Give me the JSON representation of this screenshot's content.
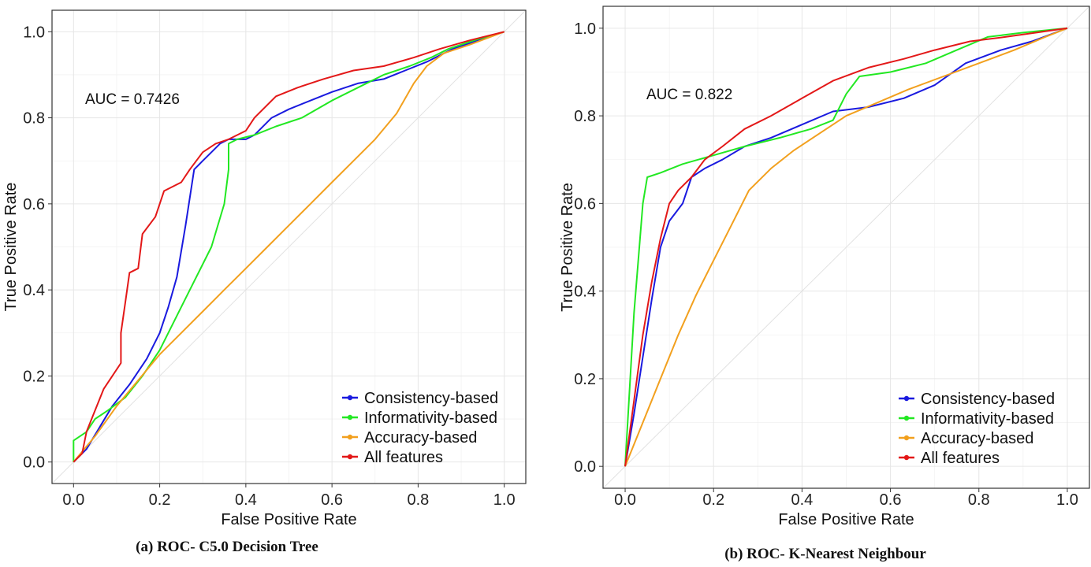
{
  "colors": {
    "Consistency-based": "#1a1adf",
    "Informativity-based": "#22e822",
    "Accuracy-based": "#f2a01e",
    "All features": "#e31818"
  },
  "chart_data": [
    {
      "type": "line",
      "caption": "(a) ROC- C5.0 Decision Tree",
      "xlabel": "False Positive Rate",
      "ylabel": "True Positive Rate",
      "annotation": "AUC = 0.7426",
      "xlim": [
        -0.05,
        1.05
      ],
      "ylim": [
        -0.05,
        1.05
      ],
      "ticks": [
        0.0,
        0.2,
        0.4,
        0.6,
        0.8,
        1.0
      ],
      "tick_labels": [
        "0.0",
        "0.2",
        "0.4",
        "0.6",
        "0.8",
        "1.0"
      ],
      "grid": true,
      "diagonal_reference": true,
      "legend_position": "bottom-right",
      "series": [
        {
          "name": "Consistency-based",
          "points": [
            [
              0,
              0
            ],
            [
              0.01,
              0.01
            ],
            [
              0.03,
              0.03
            ],
            [
              0.06,
              0.08
            ],
            [
              0.09,
              0.13
            ],
            [
              0.13,
              0.18
            ],
            [
              0.17,
              0.24
            ],
            [
              0.2,
              0.3
            ],
            [
              0.22,
              0.36
            ],
            [
              0.24,
              0.43
            ],
            [
              0.26,
              0.55
            ],
            [
              0.28,
              0.68
            ],
            [
              0.3,
              0.7
            ],
            [
              0.32,
              0.72
            ],
            [
              0.34,
              0.74
            ],
            [
              0.36,
              0.75
            ],
            [
              0.4,
              0.75
            ],
            [
              0.42,
              0.76
            ],
            [
              0.46,
              0.8
            ],
            [
              0.5,
              0.82
            ],
            [
              0.55,
              0.84
            ],
            [
              0.6,
              0.86
            ],
            [
              0.66,
              0.88
            ],
            [
              0.72,
              0.89
            ],
            [
              0.77,
              0.91
            ],
            [
              0.82,
              0.93
            ],
            [
              0.88,
              0.96
            ],
            [
              0.94,
              0.98
            ],
            [
              1,
              1
            ]
          ]
        },
        {
          "name": "Informativity-based",
          "points": [
            [
              0,
              0
            ],
            [
              0,
              0.05
            ],
            [
              0.03,
              0.07
            ],
            [
              0.05,
              0.1
            ],
            [
              0.08,
              0.12
            ],
            [
              0.12,
              0.15
            ],
            [
              0.16,
              0.2
            ],
            [
              0.2,
              0.26
            ],
            [
              0.24,
              0.34
            ],
            [
              0.28,
              0.42
            ],
            [
              0.32,
              0.5
            ],
            [
              0.35,
              0.6
            ],
            [
              0.36,
              0.68
            ],
            [
              0.36,
              0.74
            ],
            [
              0.38,
              0.75
            ],
            [
              0.42,
              0.76
            ],
            [
              0.47,
              0.78
            ],
            [
              0.53,
              0.8
            ],
            [
              0.6,
              0.84
            ],
            [
              0.66,
              0.87
            ],
            [
              0.72,
              0.9
            ],
            [
              0.78,
              0.92
            ],
            [
              0.83,
              0.94
            ],
            [
              0.87,
              0.96
            ],
            [
              0.93,
              0.98
            ],
            [
              1,
              1
            ]
          ]
        },
        {
          "name": "Accuracy-based",
          "points": [
            [
              0,
              0
            ],
            [
              0.05,
              0.06
            ],
            [
              0.1,
              0.13
            ],
            [
              0.15,
              0.19
            ],
            [
              0.2,
              0.25
            ],
            [
              0.25,
              0.3
            ],
            [
              0.3,
              0.35
            ],
            [
              0.35,
              0.4
            ],
            [
              0.4,
              0.45
            ],
            [
              0.45,
              0.5
            ],
            [
              0.5,
              0.55
            ],
            [
              0.55,
              0.6
            ],
            [
              0.6,
              0.65
            ],
            [
              0.65,
              0.7
            ],
            [
              0.7,
              0.75
            ],
            [
              0.75,
              0.81
            ],
            [
              0.79,
              0.88
            ],
            [
              0.82,
              0.92
            ],
            [
              0.86,
              0.95
            ],
            [
              0.92,
              0.97
            ],
            [
              1,
              1
            ]
          ]
        },
        {
          "name": "All features",
          "points": [
            [
              0,
              0
            ],
            [
              0.02,
              0.02
            ],
            [
              0.03,
              0.07
            ],
            [
              0.05,
              0.12
            ],
            [
              0.07,
              0.17
            ],
            [
              0.09,
              0.2
            ],
            [
              0.11,
              0.23
            ],
            [
              0.11,
              0.3
            ],
            [
              0.12,
              0.37
            ],
            [
              0.13,
              0.44
            ],
            [
              0.15,
              0.45
            ],
            [
              0.16,
              0.53
            ],
            [
              0.19,
              0.57
            ],
            [
              0.2,
              0.6
            ],
            [
              0.21,
              0.63
            ],
            [
              0.23,
              0.64
            ],
            [
              0.25,
              0.65
            ],
            [
              0.27,
              0.68
            ],
            [
              0.3,
              0.72
            ],
            [
              0.33,
              0.74
            ],
            [
              0.36,
              0.75
            ],
            [
              0.4,
              0.77
            ],
            [
              0.42,
              0.8
            ],
            [
              0.47,
              0.85
            ],
            [
              0.52,
              0.87
            ],
            [
              0.58,
              0.89
            ],
            [
              0.65,
              0.91
            ],
            [
              0.72,
              0.92
            ],
            [
              0.79,
              0.94
            ],
            [
              0.85,
              0.96
            ],
            [
              0.92,
              0.98
            ],
            [
              1,
              1
            ]
          ]
        }
      ]
    },
    {
      "type": "line",
      "caption": "(b) ROC- K-Nearest Neighbour",
      "xlabel": "False Positive Rate",
      "ylabel": "True Positive Rate",
      "annotation": "AUC = 0.822",
      "xlim": [
        -0.05,
        1.05
      ],
      "ylim": [
        -0.05,
        1.05
      ],
      "ticks": [
        0.0,
        0.2,
        0.4,
        0.6,
        0.8,
        1.0
      ],
      "tick_labels": [
        "0.0",
        "0.2",
        "0.4",
        "0.6",
        "0.8",
        "1.0"
      ],
      "grid": true,
      "diagonal_reference": true,
      "legend_position": "bottom-right",
      "series": [
        {
          "name": "Consistency-based",
          "points": [
            [
              0,
              0
            ],
            [
              0.02,
              0.12
            ],
            [
              0.04,
              0.25
            ],
            [
              0.06,
              0.38
            ],
            [
              0.08,
              0.5
            ],
            [
              0.1,
              0.56
            ],
            [
              0.13,
              0.6
            ],
            [
              0.15,
              0.66
            ],
            [
              0.18,
              0.68
            ],
            [
              0.22,
              0.7
            ],
            [
              0.27,
              0.73
            ],
            [
              0.33,
              0.75
            ],
            [
              0.4,
              0.78
            ],
            [
              0.47,
              0.81
            ],
            [
              0.55,
              0.82
            ],
            [
              0.63,
              0.84
            ],
            [
              0.7,
              0.87
            ],
            [
              0.77,
              0.92
            ],
            [
              0.85,
              0.95
            ],
            [
              0.92,
              0.97
            ],
            [
              1,
              1
            ]
          ]
        },
        {
          "name": "Informativity-based",
          "points": [
            [
              0,
              0
            ],
            [
              0.02,
              0.35
            ],
            [
              0.04,
              0.6
            ],
            [
              0.05,
              0.66
            ],
            [
              0.08,
              0.67
            ],
            [
              0.13,
              0.69
            ],
            [
              0.2,
              0.71
            ],
            [
              0.27,
              0.73
            ],
            [
              0.35,
              0.75
            ],
            [
              0.42,
              0.77
            ],
            [
              0.47,
              0.79
            ],
            [
              0.5,
              0.85
            ],
            [
              0.53,
              0.89
            ],
            [
              0.6,
              0.9
            ],
            [
              0.68,
              0.92
            ],
            [
              0.75,
              0.95
            ],
            [
              0.82,
              0.98
            ],
            [
              0.9,
              0.99
            ],
            [
              1,
              1
            ]
          ]
        },
        {
          "name": "Accuracy-based",
          "points": [
            [
              0,
              0
            ],
            [
              0.04,
              0.1
            ],
            [
              0.08,
              0.2
            ],
            [
              0.12,
              0.3
            ],
            [
              0.16,
              0.39
            ],
            [
              0.2,
              0.47
            ],
            [
              0.24,
              0.55
            ],
            [
              0.28,
              0.63
            ],
            [
              0.33,
              0.68
            ],
            [
              0.38,
              0.72
            ],
            [
              0.44,
              0.76
            ],
            [
              0.5,
              0.8
            ],
            [
              0.57,
              0.83
            ],
            [
              0.64,
              0.86
            ],
            [
              0.72,
              0.89
            ],
            [
              0.8,
              0.92
            ],
            [
              0.88,
              0.95
            ],
            [
              0.95,
              0.98
            ],
            [
              1,
              1
            ]
          ]
        },
        {
          "name": "All features",
          "points": [
            [
              0,
              0
            ],
            [
              0.02,
              0.15
            ],
            [
              0.04,
              0.3
            ],
            [
              0.06,
              0.42
            ],
            [
              0.08,
              0.52
            ],
            [
              0.1,
              0.6
            ],
            [
              0.12,
              0.63
            ],
            [
              0.15,
              0.66
            ],
            [
              0.18,
              0.7
            ],
            [
              0.22,
              0.73
            ],
            [
              0.27,
              0.77
            ],
            [
              0.33,
              0.8
            ],
            [
              0.4,
              0.84
            ],
            [
              0.47,
              0.88
            ],
            [
              0.55,
              0.91
            ],
            [
              0.63,
              0.93
            ],
            [
              0.7,
              0.95
            ],
            [
              0.78,
              0.97
            ],
            [
              0.86,
              0.98
            ],
            [
              0.93,
              0.99
            ],
            [
              1,
              1
            ]
          ]
        }
      ]
    }
  ]
}
